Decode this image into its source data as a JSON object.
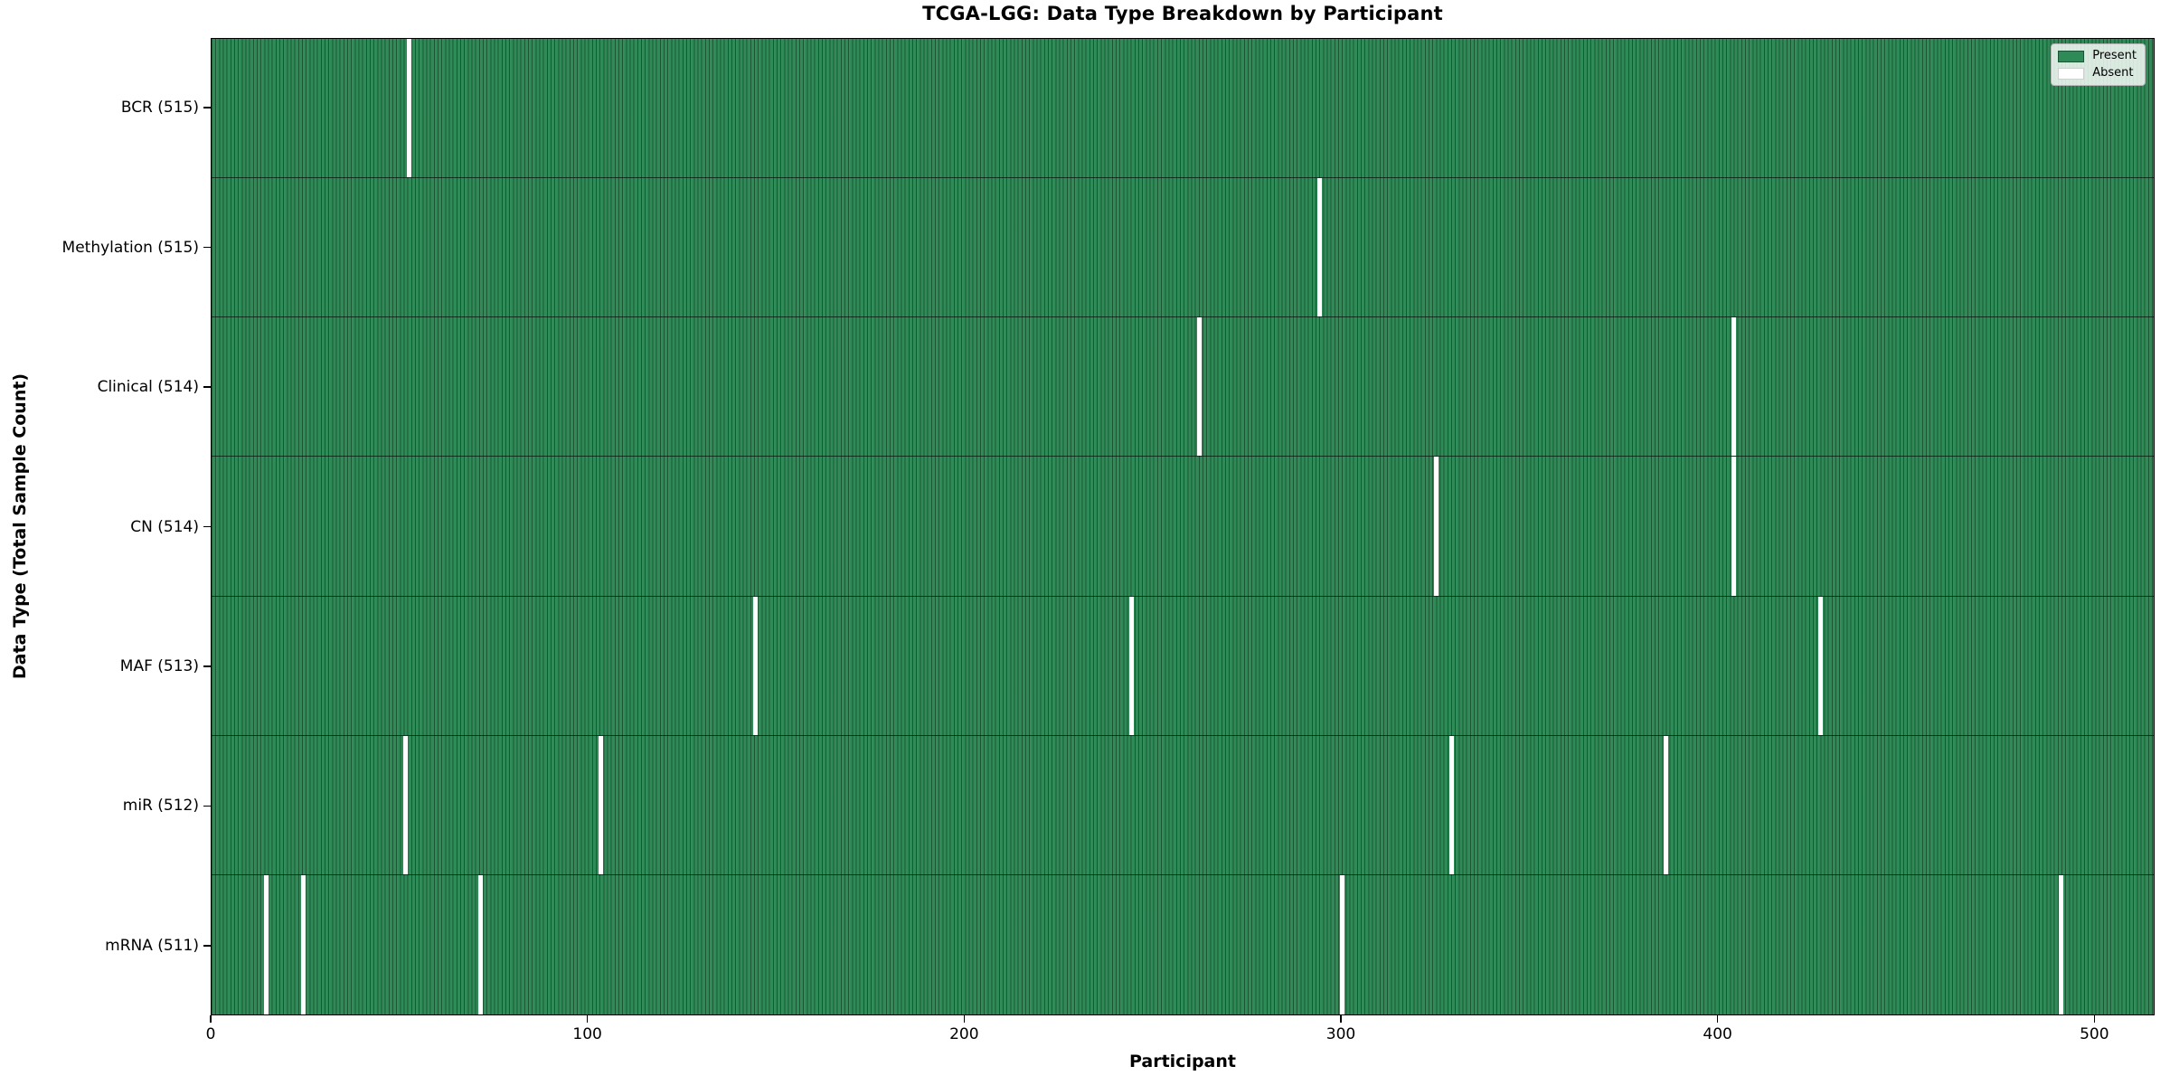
{
  "chart_data": {
    "type": "heatmap",
    "title": "TCGA-LGG: Data Type Breakdown by Participant",
    "xlabel": "Participant",
    "ylabel": "Data Type (Total Sample Count)",
    "x_ticks": [
      0,
      100,
      200,
      300,
      400,
      500
    ],
    "x_range": [
      0,
      516
    ],
    "n_participants": 516,
    "legend": [
      {
        "label": "Present",
        "key": "present",
        "color": "#2e8b57"
      },
      {
        "label": "Absent",
        "key": "absent",
        "color": "#ffffff"
      }
    ],
    "legend_position": "upper right",
    "grid": false,
    "rows": [
      {
        "label": "BCR (515)",
        "present_count": 515,
        "absent_participants": [
          52
        ]
      },
      {
        "label": "Methylation (515)",
        "present_count": 515,
        "absent_participants": [
          294
        ]
      },
      {
        "label": "Clinical (514)",
        "present_count": 514,
        "absent_participants": [
          262,
          404
        ]
      },
      {
        "label": "CN (514)",
        "present_count": 514,
        "absent_participants": [
          325,
          404
        ]
      },
      {
        "label": "MAF (513)",
        "present_count": 513,
        "absent_participants": [
          144,
          244,
          427
        ]
      },
      {
        "label": "miR (512)",
        "present_count": 512,
        "absent_participants": [
          51,
          103,
          329,
          386
        ]
      },
      {
        "label": "mRNA (511)",
        "present_count": 511,
        "absent_participants": [
          14,
          24,
          71,
          300,
          491
        ]
      }
    ],
    "colors": {
      "present": "#2e8b57",
      "absent": "#ffffff",
      "bar_edge": "#1b5434"
    }
  }
}
